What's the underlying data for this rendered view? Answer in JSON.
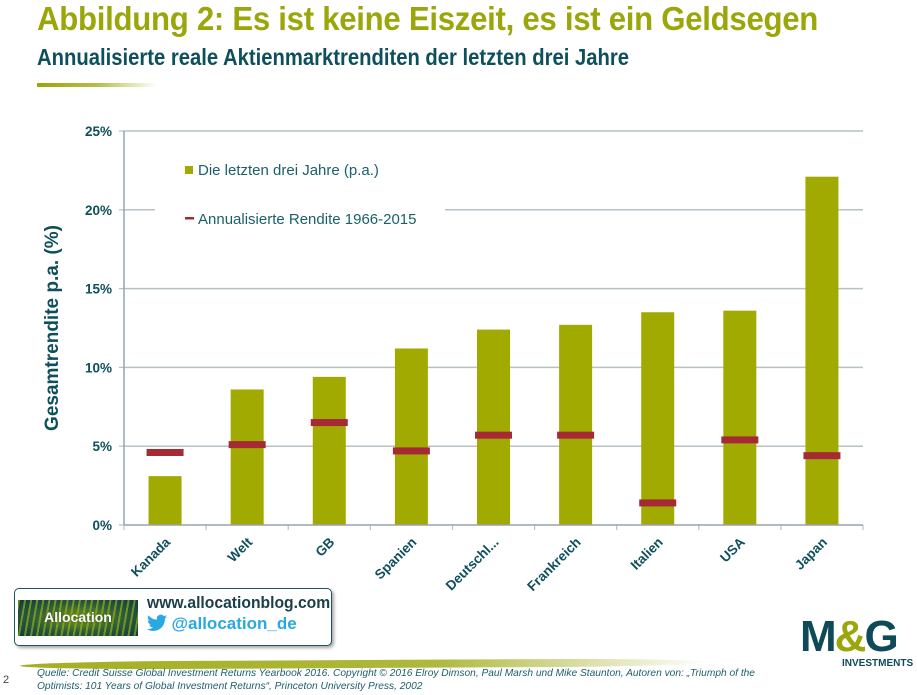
{
  "header": {
    "title": "Abbildung 2: Es ist keine Eiszeit, es ist ein Geldsegen",
    "subtitle": "Annualisierte reale Aktienmarktrenditen der letzten drei Jahre"
  },
  "colors": {
    "bar": "#a0aa00",
    "marker": "#a52a35",
    "text_dark": "#0e4f5c",
    "title_green": "#9aa60a",
    "grid": "#b7c0c4"
  },
  "chart_data": {
    "type": "bar",
    "title": "Annualisierte reale Aktienmarktrenditen der letzten drei Jahre",
    "xlabel": "",
    "ylabel": "Gesamtrendite p.a. (%)",
    "ylim": [
      0,
      25
    ],
    "yticks": [
      0,
      5,
      10,
      15,
      20,
      25
    ],
    "ytick_labels": [
      "0%",
      "5%",
      "10%",
      "15%",
      "20%",
      "25%"
    ],
    "grid": true,
    "legend_position": "top-left",
    "categories": [
      "Kanada",
      "Welt",
      "GB",
      "Spanien",
      "Deutschl...",
      "Frankreich",
      "Italien",
      "USA",
      "Japan"
    ],
    "series": [
      {
        "name": "Die letzten drei Jahre (p.a.)",
        "type": "bar",
        "values": [
          3.1,
          8.6,
          9.4,
          11.2,
          12.4,
          12.7,
          13.5,
          13.6,
          22.1
        ]
      },
      {
        "name": "Annualisierte Rendite 1966-2015",
        "type": "marker",
        "values": [
          4.6,
          5.1,
          6.5,
          4.7,
          5.7,
          5.7,
          1.4,
          5.4,
          4.4
        ]
      }
    ]
  },
  "footer": {
    "allocation_logo_text": "Allocation",
    "blog_url": "www.allocationblog.com",
    "twitter_icon": "twitter-bird-icon",
    "twitter_handle": "@allocation_de",
    "page_number": "2",
    "source": "Quelle: Credit Suisse Global Investment Returns Yearbook 2016. Copyright  © 2016 Elroy Dimson, Paul Marsh und Mike Staunton, Autoren von: „Triumph of the Optimists: 101 Years of Global Investment Returns“, Princeton University Press, 2002",
    "mg_logo_letters_1": "M",
    "mg_logo_amp": "&",
    "mg_logo_letters_2": "G",
    "mg_logo_sub": "INVESTMENTS"
  }
}
